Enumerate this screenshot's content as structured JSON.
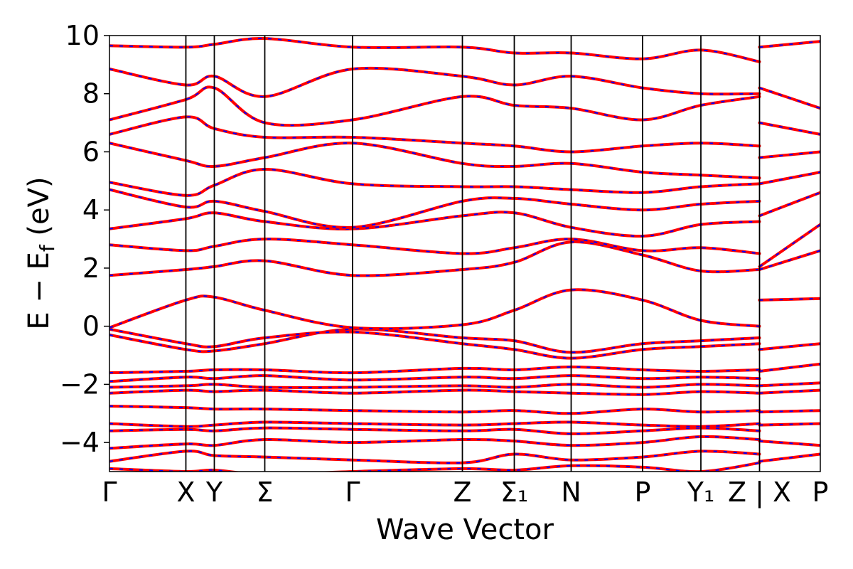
{
  "chart_data": {
    "type": "line",
    "title": "",
    "xlabel": "Wave Vector",
    "ylabel": "E − E_f (eV)",
    "ylabel_main": "E − E",
    "ylabel_sub": "f",
    "ylabel_tail": " (eV)",
    "ylim": [
      -5,
      10
    ],
    "yticks": [
      -4,
      -2,
      0,
      2,
      4,
      6,
      8,
      10
    ],
    "ytick_labels": [
      "−4",
      "−2",
      "0",
      "2",
      "4",
      "6",
      "8",
      "10"
    ],
    "grid": false,
    "legend": "none",
    "kpath_breaks": [
      0.0,
      0.215,
      0.295,
      0.437,
      0.684,
      0.993,
      1.139,
      1.299,
      1.5,
      1.664,
      1.829,
      2.0
    ],
    "kpath_labels": [
      "Γ",
      "X",
      "Y",
      "Σ",
      "Γ",
      "Z",
      "Σ₁",
      "N",
      "P",
      "Y₁",
      "Z | X",
      "P"
    ],
    "discontinuity_at": 1.829,
    "series_colors": {
      "primary": "#ff0000",
      "overlay": "#0000ff"
    },
    "series": [
      {
        "x": [
          0.0,
          0.215,
          0.295,
          0.437,
          0.684,
          0.993,
          1.139,
          1.299,
          1.5,
          1.664,
          1.829
        ],
        "y": [
          -4.9,
          -5.0,
          -4.95,
          -5.1,
          -5.0,
          -4.9,
          -4.95,
          -4.8,
          -4.85,
          -5.0,
          -4.7
        ]
      },
      {
        "x": [
          0.0,
          0.215,
          0.295,
          0.437,
          0.684,
          0.993,
          1.139,
          1.299,
          1.5,
          1.664,
          1.829
        ],
        "y": [
          -4.65,
          -4.3,
          -4.45,
          -4.5,
          -4.6,
          -4.7,
          -4.4,
          -4.6,
          -4.5,
          -4.3,
          -4.4
        ]
      },
      {
        "x": [
          0.0,
          0.215,
          0.295,
          0.437,
          0.684,
          0.993,
          1.139,
          1.299,
          1.5,
          1.664,
          1.829
        ],
        "y": [
          -4.2,
          -4.05,
          -4.1,
          -3.9,
          -4.0,
          -3.9,
          -3.95,
          -4.1,
          -4.0,
          -3.8,
          -3.9
        ]
      },
      {
        "x": [
          0.0,
          0.215,
          0.295,
          0.437,
          0.684,
          0.993,
          1.139,
          1.299,
          1.5,
          1.664,
          1.829
        ],
        "y": [
          -3.6,
          -3.55,
          -3.6,
          -3.5,
          -3.55,
          -3.6,
          -3.55,
          -3.7,
          -3.6,
          -3.5,
          -3.6
        ]
      },
      {
        "x": [
          0.0,
          0.215,
          0.295,
          0.437,
          0.684,
          0.993,
          1.139,
          1.299,
          1.5,
          1.664,
          1.829
        ],
        "y": [
          -3.35,
          -3.45,
          -3.4,
          -3.3,
          -3.35,
          -3.4,
          -3.35,
          -3.3,
          -3.4,
          -3.45,
          -3.35
        ]
      },
      {
        "x": [
          0.0,
          0.215,
          0.295,
          0.437,
          0.684,
          0.993,
          1.139,
          1.299,
          1.5,
          1.664,
          1.829
        ],
        "y": [
          -2.75,
          -2.8,
          -2.85,
          -2.85,
          -2.9,
          -2.95,
          -2.9,
          -3.0,
          -2.85,
          -2.95,
          -2.9
        ]
      },
      {
        "x": [
          0.0,
          0.215,
          0.295,
          0.437,
          0.684,
          0.993,
          1.139,
          1.299,
          1.5,
          1.664,
          1.829
        ],
        "y": [
          -2.3,
          -2.2,
          -2.25,
          -2.2,
          -2.3,
          -2.2,
          -2.25,
          -2.3,
          -2.35,
          -2.25,
          -2.3
        ]
      },
      {
        "x": [
          0.0,
          0.215,
          0.295,
          0.437,
          0.684,
          0.993,
          1.139,
          1.299,
          1.5,
          1.664,
          1.829
        ],
        "y": [
          -2.1,
          -2.05,
          -2.0,
          -2.1,
          -2.1,
          -2.05,
          -2.1,
          -2.0,
          -2.1,
          -2.0,
          -2.05
        ]
      },
      {
        "x": [
          0.0,
          0.215,
          0.295,
          0.437,
          0.684,
          0.993,
          1.139,
          1.299,
          1.5,
          1.664,
          1.829
        ],
        "y": [
          -1.9,
          -1.75,
          -1.8,
          -1.7,
          -1.85,
          -1.75,
          -1.8,
          -1.7,
          -1.8,
          -1.75,
          -1.8
        ]
      },
      {
        "x": [
          0.0,
          0.215,
          0.295,
          0.437,
          0.684,
          0.993,
          1.139,
          1.299,
          1.5,
          1.664,
          1.829
        ],
        "y": [
          -1.6,
          -1.55,
          -1.5,
          -1.5,
          -1.6,
          -1.45,
          -1.5,
          -1.4,
          -1.5,
          -1.55,
          -1.5
        ]
      },
      {
        "x": [
          0.0,
          0.215,
          0.295,
          0.437,
          0.684,
          0.993,
          1.139,
          1.299,
          1.5,
          1.664,
          1.829
        ],
        "y": [
          -0.3,
          -0.8,
          -0.85,
          -0.6,
          -0.1,
          -0.4,
          -0.5,
          -0.9,
          -0.6,
          -0.5,
          -0.4
        ]
      },
      {
        "x": [
          0.0,
          0.215,
          0.295,
          0.437,
          0.684,
          0.993,
          1.139,
          1.299,
          1.5,
          1.664,
          1.829
        ],
        "y": [
          -0.1,
          -0.6,
          -0.7,
          -0.4,
          -0.2,
          -0.6,
          -0.8,
          -1.1,
          -0.8,
          -0.7,
          -0.6
        ]
      },
      {
        "x": [
          0.0,
          0.215,
          0.295,
          0.437,
          0.684,
          0.993,
          1.139,
          1.299,
          1.5,
          1.664,
          1.829
        ],
        "y": [
          -0.05,
          0.9,
          1.0,
          0.55,
          -0.05,
          0.05,
          0.55,
          1.25,
          0.9,
          0.2,
          0.0
        ]
      },
      {
        "x": [
          0.0,
          0.215,
          0.295,
          0.437,
          0.684,
          0.993,
          1.139,
          1.299,
          1.5,
          1.664,
          1.829
        ],
        "y": [
          1.75,
          1.95,
          2.05,
          2.25,
          1.75,
          1.95,
          2.2,
          2.9,
          2.45,
          1.9,
          1.95
        ]
      },
      {
        "x": [
          0.0,
          0.215,
          0.295,
          0.437,
          0.684,
          0.993,
          1.139,
          1.299,
          1.5,
          1.664,
          1.829
        ],
        "y": [
          2.8,
          2.6,
          2.75,
          3.0,
          2.8,
          2.5,
          2.7,
          3.0,
          2.6,
          2.7,
          2.5
        ]
      },
      {
        "x": [
          0.0,
          0.215,
          0.295,
          0.437,
          0.684,
          0.993,
          1.139,
          1.299,
          1.5,
          1.664,
          1.829
        ],
        "y": [
          3.35,
          3.7,
          3.9,
          3.6,
          3.35,
          3.8,
          3.9,
          3.4,
          3.1,
          3.5,
          3.6
        ]
      },
      {
        "x": [
          0.0,
          0.215,
          0.295,
          0.437,
          0.684,
          0.993,
          1.139,
          1.299,
          1.5,
          1.664,
          1.829
        ],
        "y": [
          4.7,
          4.1,
          4.3,
          3.95,
          3.4,
          4.3,
          4.4,
          4.2,
          4.0,
          4.2,
          4.3
        ]
      },
      {
        "x": [
          0.0,
          0.215,
          0.295,
          0.437,
          0.684,
          0.993,
          1.139,
          1.299,
          1.5,
          1.664,
          1.829
        ],
        "y": [
          4.95,
          4.5,
          4.85,
          5.4,
          4.9,
          4.8,
          4.8,
          4.7,
          4.6,
          4.8,
          4.9
        ]
      },
      {
        "x": [
          0.0,
          0.215,
          0.295,
          0.437,
          0.684,
          0.993,
          1.139,
          1.299,
          1.5,
          1.664,
          1.829
        ],
        "y": [
          6.3,
          5.7,
          5.5,
          5.8,
          6.3,
          5.6,
          5.5,
          5.6,
          5.3,
          5.2,
          5.1
        ]
      },
      {
        "x": [
          0.0,
          0.215,
          0.295,
          0.437,
          0.684,
          0.993,
          1.139,
          1.299,
          1.5,
          1.664,
          1.829
        ],
        "y": [
          6.6,
          7.2,
          6.8,
          6.5,
          6.5,
          6.3,
          6.2,
          6.0,
          6.2,
          6.3,
          6.2
        ]
      },
      {
        "x": [
          0.0,
          0.215,
          0.295,
          0.437,
          0.684,
          0.993,
          1.139,
          1.299,
          1.5,
          1.664,
          1.829
        ],
        "y": [
          7.1,
          7.8,
          8.2,
          7.0,
          7.1,
          7.9,
          7.6,
          7.5,
          7.1,
          7.6,
          7.9
        ]
      },
      {
        "x": [
          0.0,
          0.215,
          0.295,
          0.437,
          0.684,
          0.993,
          1.139,
          1.299,
          1.5,
          1.664,
          1.829
        ],
        "y": [
          8.85,
          8.3,
          8.6,
          7.9,
          8.85,
          8.6,
          8.3,
          8.6,
          8.2,
          8.0,
          8.0
        ]
      },
      {
        "x": [
          0.0,
          0.215,
          0.295,
          0.437,
          0.684,
          0.993,
          1.139,
          1.299,
          1.5,
          1.664,
          1.829
        ],
        "y": [
          9.65,
          9.6,
          9.7,
          9.9,
          9.6,
          9.6,
          9.4,
          9.4,
          9.2,
          9.5,
          9.1
        ]
      },
      {
        "x": [
          1.829,
          2.0
        ],
        "y": [
          -4.65,
          -4.4
        ]
      },
      {
        "x": [
          1.829,
          2.0
        ],
        "y": [
          -3.95,
          -4.1
        ]
      },
      {
        "x": [
          1.829,
          2.0
        ],
        "y": [
          -3.4,
          -3.35
        ]
      },
      {
        "x": [
          1.829,
          2.0
        ],
        "y": [
          -2.95,
          -2.9
        ]
      },
      {
        "x": [
          1.829,
          2.0
        ],
        "y": [
          -2.3,
          -2.2
        ]
      },
      {
        "x": [
          1.829,
          2.0
        ],
        "y": [
          -2.05,
          -1.95
        ]
      },
      {
        "x": [
          1.829,
          2.0
        ],
        "y": [
          -1.55,
          -1.3
        ]
      },
      {
        "x": [
          1.829,
          2.0
        ],
        "y": [
          -0.8,
          -0.6
        ]
      },
      {
        "x": [
          1.829,
          2.0
        ],
        "y": [
          0.9,
          0.95
        ]
      },
      {
        "x": [
          1.829,
          2.0
        ],
        "y": [
          1.95,
          2.6
        ]
      },
      {
        "x": [
          1.829,
          2.0
        ],
        "y": [
          2.05,
          3.5
        ]
      },
      {
        "x": [
          1.829,
          2.0
        ],
        "y": [
          3.8,
          4.6
        ]
      },
      {
        "x": [
          1.829,
          2.0
        ],
        "y": [
          4.9,
          5.3
        ]
      },
      {
        "x": [
          1.829,
          2.0
        ],
        "y": [
          5.8,
          6.0
        ]
      },
      {
        "x": [
          1.829,
          2.0
        ],
        "y": [
          7.0,
          6.6
        ]
      },
      {
        "x": [
          1.829,
          2.0
        ],
        "y": [
          8.2,
          7.5
        ]
      },
      {
        "x": [
          1.829,
          2.0
        ],
        "y": [
          9.6,
          9.8
        ]
      }
    ]
  }
}
